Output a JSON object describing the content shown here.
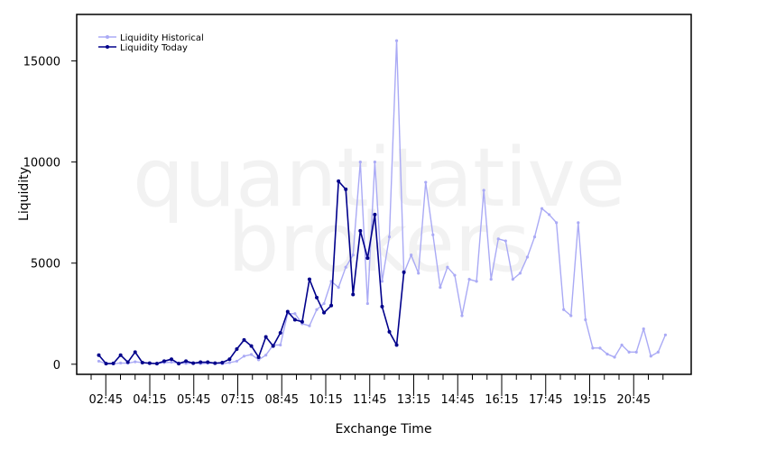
{
  "watermark": {
    "line1": "quantitative",
    "line2": "brokers"
  },
  "chart_data": {
    "type": "line",
    "xlabel": "Exchange Time",
    "ylabel": "Liquidity",
    "ylim": [
      -500,
      17300
    ],
    "y_ticks": [
      0,
      5000,
      10000,
      15000
    ],
    "x_tick_labels": [
      "02:45",
      "04:15",
      "05:45",
      "07:15",
      "08:45",
      "10:15",
      "11:45",
      "13:15",
      "14:45",
      "16:15",
      "17:45",
      "19:15",
      "20:45"
    ],
    "x_tick_label_start_index": 1,
    "x_tick_label_every": 3,
    "x_minor_tick_count": 40,
    "legend": {
      "position": "top-left"
    },
    "grid": false,
    "series": [
      {
        "name": "Liquidity Historical",
        "color": "#aaaaf5",
        "values": [
          150,
          30,
          20,
          60,
          50,
          120,
          80,
          50,
          40,
          80,
          100,
          60,
          40,
          60,
          30,
          50,
          60,
          20,
          80,
          150,
          400,
          480,
          220,
          450,
          950,
          950,
          2500,
          2500,
          2000,
          1900,
          2700,
          3000,
          4100,
          3800,
          4800,
          5400,
          10000,
          3000,
          10000,
          4100,
          6300,
          16000,
          4500,
          5400,
          4500,
          9000,
          6400,
          3800,
          4800,
          4400,
          2400,
          4200,
          4100,
          8600,
          4200,
          6200,
          6100,
          4200,
          4500,
          5300,
          6300,
          7700,
          7400,
          7000,
          2700,
          2400,
          7000,
          2200,
          800,
          800,
          500,
          350,
          950,
          600,
          600,
          1750,
          400,
          600,
          1450
        ]
      },
      {
        "name": "Liquidity Today",
        "color": "#00008b",
        "values": [
          450,
          30,
          40,
          450,
          100,
          600,
          80,
          50,
          30,
          150,
          250,
          30,
          150,
          50,
          100,
          100,
          50,
          80,
          250,
          750,
          1200,
          900,
          350,
          1350,
          900,
          1550,
          2600,
          2200,
          2100,
          4200,
          3300,
          2550,
          2900,
          9050,
          8650,
          3450,
          6600,
          5250,
          7400,
          2850,
          1600,
          950,
          4550
        ]
      }
    ]
  }
}
